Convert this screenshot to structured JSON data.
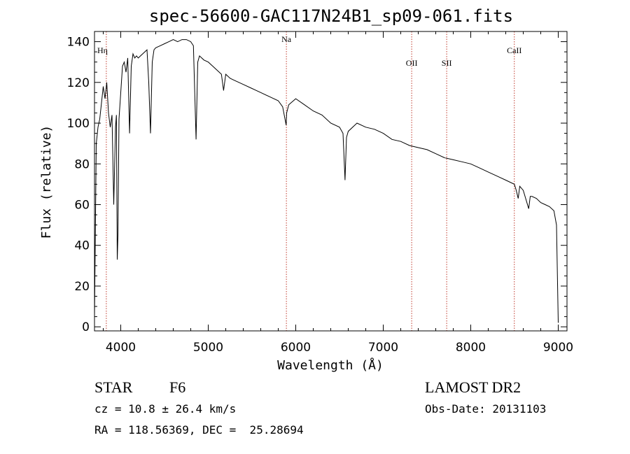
{
  "title": "spec-56600-GAC117N24B1_sp09-061.fits",
  "chart_data": {
    "type": "line",
    "xlabel": "Wavelength (Å)",
    "ylabel": "Flux (relative)",
    "xlim": [
      3700,
      9100
    ],
    "ylim": [
      -2,
      145
    ],
    "xticks": [
      4000,
      5000,
      6000,
      7000,
      8000,
      9000
    ],
    "yticks": [
      0,
      20,
      40,
      60,
      80,
      100,
      120,
      140
    ],
    "grid": false,
    "spectrum": {
      "x": [
        3700,
        3720,
        3740,
        3760,
        3780,
        3800,
        3820,
        3840,
        3860,
        3880,
        3900,
        3920,
        3940,
        3950,
        3960,
        3968,
        3980,
        4000,
        4020,
        4040,
        4060,
        4080,
        4101,
        4120,
        4140,
        4160,
        4180,
        4200,
        4250,
        4300,
        4320,
        4340,
        4360,
        4380,
        4400,
        4450,
        4500,
        4550,
        4600,
        4650,
        4700,
        4750,
        4800,
        4830,
        4861,
        4880,
        4900,
        4950,
        5000,
        5050,
        5100,
        5150,
        5175,
        5200,
        5250,
        5300,
        5400,
        5500,
        5600,
        5700,
        5800,
        5850,
        5890,
        5896,
        5920,
        6000,
        6100,
        6200,
        6300,
        6400,
        6500,
        6540,
        6563,
        6580,
        6600,
        6700,
        6800,
        6900,
        7000,
        7100,
        7200,
        7300,
        7400,
        7500,
        7600,
        7700,
        7800,
        7900,
        8000,
        8100,
        8200,
        8300,
        8400,
        8498,
        8520,
        8542,
        8560,
        8600,
        8662,
        8680,
        8700,
        8750,
        8800,
        8850,
        8900,
        8950,
        8980,
        9000
      ],
      "y": [
        5,
        90,
        98,
        102,
        110,
        118,
        112,
        120,
        105,
        98,
        104,
        60,
        98,
        104,
        33,
        45,
        102,
        115,
        128,
        130,
        125,
        132,
        95,
        128,
        134,
        132,
        133,
        132,
        134,
        136,
        120,
        95,
        130,
        136,
        137,
        138,
        139,
        140,
        141,
        140,
        141,
        141,
        140,
        138,
        92,
        130,
        133,
        131,
        130,
        128,
        126,
        124,
        116,
        124,
        122,
        121,
        119,
        117,
        115,
        113,
        111,
        108,
        99,
        105,
        109,
        112,
        109,
        106,
        104,
        100,
        98,
        95,
        72,
        93,
        96,
        100,
        98,
        97,
        95,
        92,
        91,
        89,
        88,
        87,
        85,
        83,
        82,
        81,
        80,
        78,
        76,
        74,
        72,
        70,
        67,
        63,
        69,
        67,
        58,
        64,
        64,
        63,
        61,
        60,
        59,
        57,
        50,
        2
      ]
    },
    "lines": [
      {
        "label": "Hη",
        "x": 3835
      },
      {
        "label": "Na",
        "x": 5893
      },
      {
        "label": "OII",
        "x": 7325
      },
      {
        "label": "SII",
        "x": 7725
      },
      {
        "label": "CaII",
        "x": 8498
      }
    ],
    "line_marker_color": "#c0392b",
    "line_color": "#000000"
  },
  "info": {
    "class_label": "STAR",
    "subclass": "F6",
    "survey": "LAMOST DR2",
    "cz": "cz = 10.8 ± 26.4 km/s",
    "obs_date": "Obs-Date: 20131103",
    "coords": "RA = 118.56369, DEC =  25.28694"
  }
}
